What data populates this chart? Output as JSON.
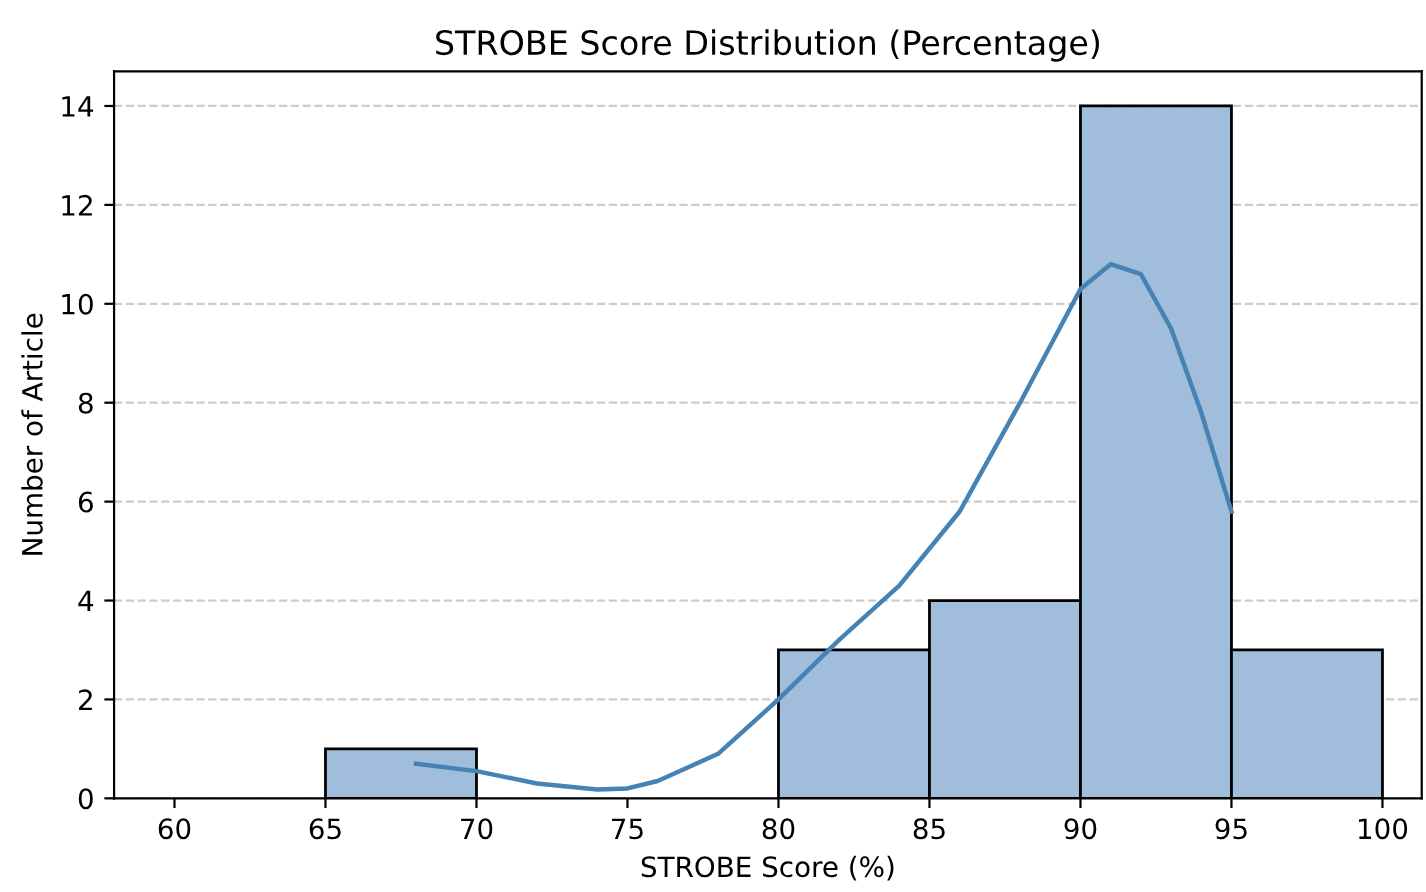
{
  "chart_data": {
    "type": "histogram",
    "title": "STROBE Score Distribution (Percentage)",
    "xlabel": "STROBE Score (%)",
    "ylabel": "Number of Article",
    "bins": [
      60,
      65,
      70,
      75,
      80,
      85,
      90,
      95,
      100
    ],
    "values": [
      0,
      1,
      0,
      0,
      3,
      4,
      14,
      3
    ],
    "color": "#a0bedb",
    "series": [
      {
        "type": "line",
        "color": "#4682b4",
        "x": [
          68,
          70,
          72,
          74,
          75,
          76,
          78,
          80,
          82,
          84,
          86,
          88,
          90,
          91,
          92,
          93,
          94,
          95
        ],
        "values": [
          0.7,
          0.55,
          0.3,
          0.18,
          0.2,
          0.35,
          0.9,
          2.0,
          3.2,
          4.3,
          5.8,
          8.0,
          10.3,
          10.8,
          10.6,
          9.5,
          7.8,
          5.8
        ]
      }
    ],
    "xlim": [
      58,
      101.3
    ],
    "ylim": [
      0,
      14.7
    ],
    "xticks": [
      60,
      65,
      70,
      75,
      80,
      85,
      90,
      95,
      100
    ],
    "yticks": [
      0,
      2,
      4,
      6,
      8,
      10,
      12,
      14
    ],
    "grid": "y"
  }
}
